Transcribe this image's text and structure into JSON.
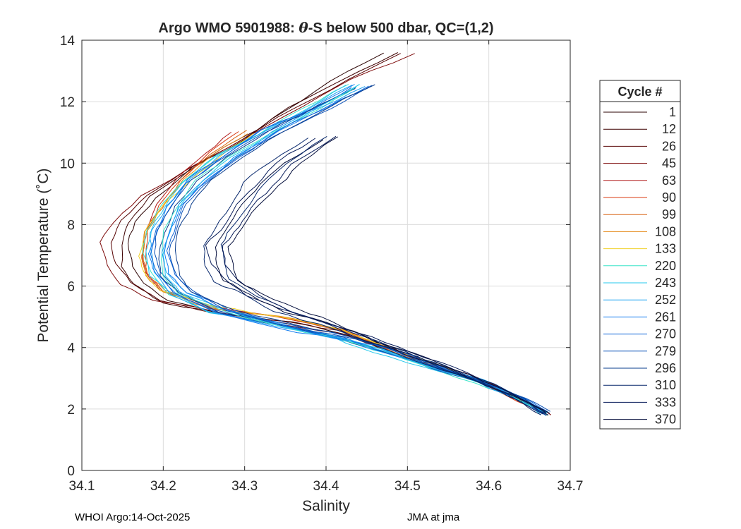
{
  "chart_data": {
    "type": "line",
    "title_prefix": "Argo WMO 5901988: ",
    "title_theta": "θ",
    "title_suffix": "-S below 500 dbar,  QC=(1,2)",
    "xlabel": "Salinity",
    "ylabel": "Potential Temperature (˚C)",
    "xlim": [
      34.1,
      34.7
    ],
    "ylim": [
      0,
      14
    ],
    "xticks": [
      "34.1",
      "34.2",
      "34.3",
      "34.4",
      "34.5",
      "34.6",
      "34.7"
    ],
    "yticks": [
      "0",
      "2",
      "4",
      "6",
      "8",
      "10",
      "12",
      "14"
    ],
    "grid": true,
    "legend": {
      "title": "Cycle #",
      "placement": "right, outside plot",
      "entries": [
        {
          "label": "1",
          "color": "#2a0000"
        },
        {
          "label": "12",
          "color": "#3d0000"
        },
        {
          "label": "26",
          "color": "#550000"
        },
        {
          "label": "45",
          "color": "#7d0a0a"
        },
        {
          "label": "63",
          "color": "#b01a1a"
        },
        {
          "label": "90",
          "color": "#d83a10"
        },
        {
          "label": "99",
          "color": "#d86414"
        },
        {
          "label": "108",
          "color": "#e48a18"
        },
        {
          "label": "133",
          "color": "#f0d024"
        },
        {
          "label": "220",
          "color": "#3ae4c8"
        },
        {
          "label": "243",
          "color": "#24c8ec"
        },
        {
          "label": "252",
          "color": "#1aa2f2"
        },
        {
          "label": "261",
          "color": "#147ef0"
        },
        {
          "label": "270",
          "color": "#1066d8"
        },
        {
          "label": "279",
          "color": "#0c52b8"
        },
        {
          "label": "296",
          "color": "#0a3c8c"
        },
        {
          "label": "310",
          "color": "#08286c"
        },
        {
          "label": "333",
          "color": "#061a58"
        },
        {
          "label": "370",
          "color": "#040e3c"
        }
      ]
    },
    "series_groups": [
      {
        "name": "early dark-red cycles",
        "colors": [
          "#2a0000",
          "#3d0000",
          "#550000",
          "#7d0a0a"
        ],
        "count": 4,
        "s_offset_at_min": -0.045,
        "s_offset_deep": 0.0,
        "x": [
          34.49,
          34.42,
          34.36,
          34.3,
          34.23,
          34.18,
          34.15,
          34.14,
          34.145,
          34.16,
          34.2,
          34.27,
          34.35,
          34.42,
          34.47,
          34.53,
          34.59,
          34.64,
          34.67
        ],
        "y": [
          13.6,
          12.7,
          11.8,
          10.8,
          9.8,
          8.9,
          8.1,
          7.4,
          6.7,
          6.1,
          5.5,
          5.1,
          4.8,
          4.5,
          4.0,
          3.4,
          2.9,
          2.3,
          1.85
        ]
      },
      {
        "name": "orange cycles",
        "colors": [
          "#b01a1a",
          "#d83a10",
          "#d86414",
          "#e48a18",
          "#f0d024"
        ],
        "count": 5,
        "s_offset_at_min": -0.02,
        "s_offset_deep": 0.0,
        "x": [
          34.3,
          34.26,
          34.22,
          34.195,
          34.18,
          34.175,
          34.18,
          34.2,
          34.26,
          34.34,
          34.42,
          34.47,
          34.53,
          34.59,
          34.64,
          34.67
        ],
        "y": [
          11.0,
          10.3,
          9.4,
          8.6,
          7.8,
          7.0,
          6.4,
          5.8,
          5.3,
          4.95,
          4.6,
          4.0,
          3.4,
          2.9,
          2.3,
          1.85
        ]
      },
      {
        "name": "blue cycles",
        "colors": [
          "#3ae4c8",
          "#24c8ec",
          "#1aa2f2",
          "#147ef0",
          "#1066d8",
          "#0c52b8",
          "#0a3c8c"
        ],
        "count": 14,
        "s_offset_at_min": 0.015,
        "s_offset_deep": 0.0,
        "x": [
          34.44,
          34.39,
          34.33,
          34.28,
          34.24,
          34.215,
          34.2,
          34.195,
          34.2,
          34.22,
          34.27,
          34.35,
          34.42,
          34.47,
          34.53,
          34.59,
          34.64,
          34.67
        ],
        "y": [
          12.5,
          11.8,
          11.0,
          10.2,
          9.4,
          8.6,
          7.8,
          7.1,
          6.4,
          5.8,
          5.2,
          4.7,
          4.3,
          3.9,
          3.4,
          2.9,
          2.35,
          1.85
        ]
      },
      {
        "name": "late navy cycles",
        "colors": [
          "#08286c",
          "#061a58",
          "#040e3c"
        ],
        "count": 6,
        "s_offset_at_min": 0.01,
        "s_offset_deep": 0.0,
        "x": [
          34.4,
          34.35,
          34.32,
          34.3,
          34.28,
          34.265,
          34.27,
          34.28,
          34.31,
          34.35,
          34.4,
          34.45,
          34.5,
          34.55,
          34.6,
          34.64,
          34.67
        ],
        "y": [
          10.8,
          10.0,
          9.3,
          8.6,
          7.9,
          7.3,
          6.7,
          6.2,
          5.7,
          5.2,
          4.8,
          4.3,
          3.8,
          3.3,
          2.8,
          2.3,
          1.85
        ]
      }
    ]
  },
  "footer": {
    "left": "WHOI Argo:14-Oct-2025",
    "right": "JMA at jma"
  }
}
